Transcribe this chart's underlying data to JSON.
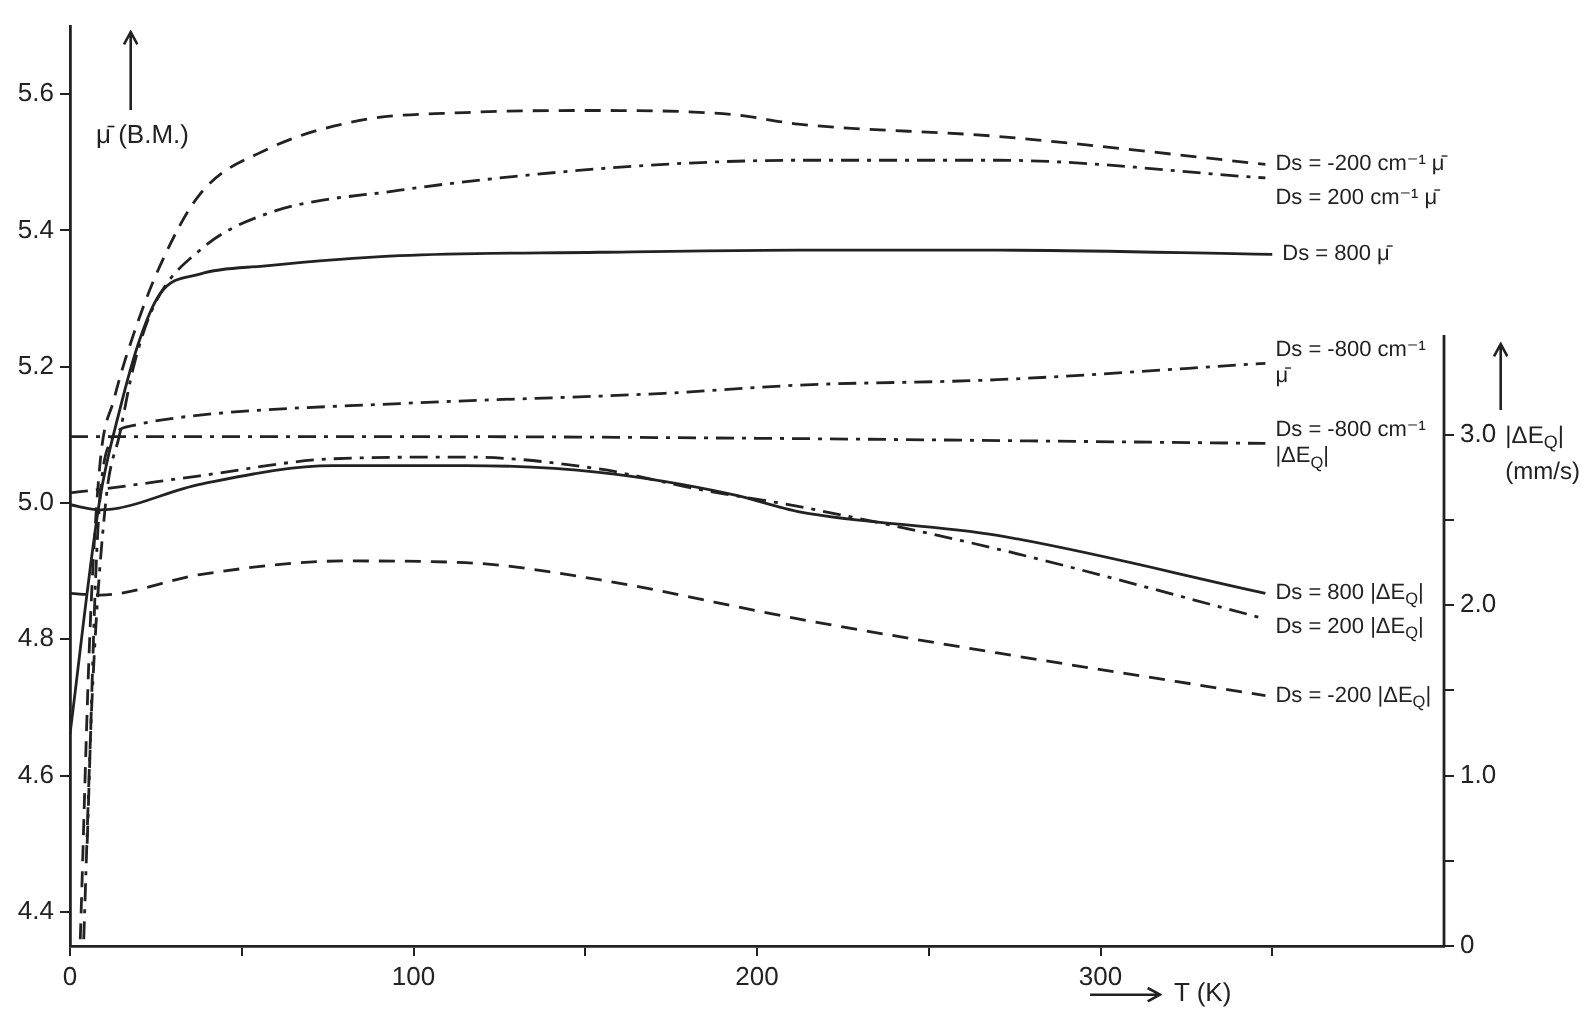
{
  "chart_data": {
    "type": "line",
    "xlabel": "T (K)",
    "ylabel": "μ̄ (B.M.)",
    "y2label": "|ΔE$_{Q}$| (mm/s)",
    "xlim": [
      0,
      400
    ],
    "xticks": [
      0,
      {
        "value": 50,
        "label": null
      },
      100,
      {
        "value": 150,
        "label": null
      },
      200,
      {
        "value": 250,
        "label": null
      },
      300,
      {
        "value": 350,
        "label": null
      }
    ],
    "ylim": [
      4.35,
      5.7
    ],
    "yticks": [
      4.4,
      4.6,
      4.8,
      {
        "value": 5,
        "label": "5.0"
      },
      5.2,
      5.4,
      5.6
    ],
    "y2lim": [
      0,
      5.4
    ],
    "y2ticks": [
      {
        "value": 0,
        "label": "0"
      },
      {
        "value": 0.5,
        "label": null
      },
      {
        "value": 1,
        "label": "1.0"
      },
      {
        "value": 1.5,
        "label": null
      },
      {
        "value": 2,
        "label": "2.0"
      },
      {
        "value": 2.5,
        "label": null
      },
      {
        "value": 3,
        "label": "3.0"
      }
    ],
    "series": [
      {
        "name": "Ds = -200 cm⁻¹ μ̄",
        "color": "#222222",
        "line_style": "dashed",
        "x": [
          3,
          5.8,
          8.7,
          12.8,
          18.6,
          26.2,
          37.8,
          57,
          84,
          115,
          154,
          193,
          212,
          270,
          348
        ],
        "values": [
          4.36,
          4.81,
          5.056,
          5.152,
          5.249,
          5.348,
          5.453,
          5.518,
          5.561,
          5.573,
          5.576,
          5.57,
          5.556,
          5.538,
          5.497
        ]
      },
      {
        "name": "Ds = 200 cm⁻¹ μ̄",
        "color": "#222222",
        "line_style": "dashdot",
        "x": [
          4,
          6.4,
          10.5,
          14.5,
          18.6,
          24.4,
          37.8,
          57,
          96,
          135,
          173,
          212,
          270,
          348
        ],
        "values": [
          4.36,
          4.71,
          5.006,
          5.102,
          5.202,
          5.289,
          5.371,
          5.424,
          5.459,
          5.482,
          5.497,
          5.503,
          5.503,
          5.477
        ]
      },
      {
        "name": "Ds = 800 μ̄",
        "color": "#222222",
        "line_style": "solid",
        "x": [
          0,
          8.7,
          14.5,
          20.3,
          26.2,
          37.8,
          57,
          96,
          154,
          212,
          270,
          350
        ],
        "values": [
          4.661,
          5.006,
          5.137,
          5.24,
          5.307,
          5.336,
          5.348,
          5.363,
          5.368,
          5.371,
          5.371,
          5.365
        ]
      },
      {
        "name": "Ds = -800 cm⁻¹ μ̄",
        "color": "#222222",
        "line_style": "dashdot",
        "x": [
          5,
          8,
          11.6,
          18.6,
          37.8,
          96,
          173,
          212,
          270,
          348
        ],
        "values": [
          4.5,
          4.95,
          5.088,
          5.114,
          5.129,
          5.146,
          5.161,
          5.173,
          5.181,
          5.205
        ]
      },
      {
        "name": "Ds = -800 cm⁻¹ |ΔE$_{Q}$|",
        "color": "#222222",
        "line_style": "dashdot",
        "axis": "y2",
        "x": [
          0,
          100,
          200,
          348
        ],
        "values": [
          2.99,
          2.99,
          2.98,
          2.95
        ]
      },
      {
        "name": "Ds = 800 |ΔE$_{Q}$|",
        "color": "#222222",
        "line_style": "solid",
        "axis": "y2",
        "x": [
          0,
          8.7,
          37.8,
          76.7,
          115,
          154,
          193,
          212,
          270,
          348
        ],
        "values": [
          2.59,
          2.56,
          2.71,
          2.82,
          2.82,
          2.78,
          2.65,
          2.55,
          2.41,
          2.07
        ]
      },
      {
        "name": "Ds = 200 |ΔE$_{Q}$|",
        "color": "#222222",
        "line_style": "dashdot",
        "axis": "y2",
        "x": [
          0,
          8.7,
          37.8,
          76.7,
          115,
          154,
          183,
          212,
          270,
          348
        ],
        "values": [
          2.66,
          2.68,
          2.76,
          2.86,
          2.87,
          2.8,
          2.68,
          2.58,
          2.33,
          1.92
        ]
      },
      {
        "name": "Ds = -200 |ΔE$_{Q}$|",
        "color": "#222222",
        "line_style": "dashed",
        "axis": "y2",
        "x": [
          0,
          8.7,
          37.8,
          80,
          115,
          154,
          212,
          270,
          348
        ],
        "values": [
          2.07,
          2.06,
          2.18,
          2.26,
          2.25,
          2.15,
          1.92,
          1.72,
          1.47
        ]
      }
    ]
  }
}
